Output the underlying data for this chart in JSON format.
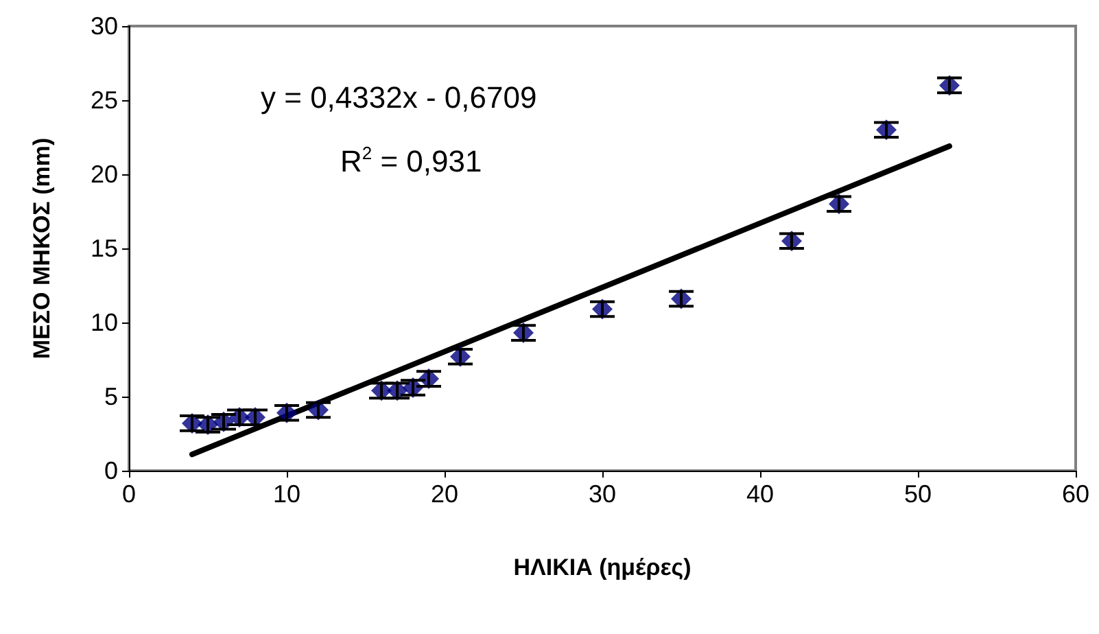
{
  "chart_data": {
    "type": "scatter",
    "xlabel": "ΗΛΙΚΙΑ (ημέρες)",
    "ylabel": "ΜΕΣΟ ΜΗΚΟΣ (mm)",
    "xlim": [
      0,
      60
    ],
    "xticks": [
      0,
      10,
      20,
      30,
      40,
      50,
      60
    ],
    "ylim": [
      0,
      30
    ],
    "yticks": [
      0,
      5,
      10,
      15,
      20,
      25,
      30
    ],
    "grid": false,
    "marker": "diamond",
    "annotations": [
      "y = 0,4332x - 0,6709",
      "R$^{2}$ = 0,931"
    ],
    "series": [
      {
        "color": "#000080",
        "x": [
          4,
          5,
          6,
          7,
          8,
          10,
          12,
          16,
          17,
          18,
          19,
          21,
          25,
          30,
          35,
          42,
          45,
          48,
          52
        ],
        "values": [
          3.2,
          3.1,
          3.3,
          3.6,
          3.6,
          3.9,
          4.1,
          5.4,
          5.4,
          5.6,
          6.2,
          7.7,
          9.3,
          10.9,
          11.6,
          15.5,
          18.0,
          23.0,
          26.0
        ],
        "errors": [
          0.5,
          0.5,
          0.5,
          0.5,
          0.5,
          0.5,
          0.5,
          0.5,
          0.5,
          0.5,
          0.5,
          0.5,
          0.5,
          0.5,
          0.5,
          0.5,
          0.5,
          0.5,
          0.5
        ]
      },
      {
        "type": "line",
        "color": "#000000",
        "line_style": "solid",
        "marker": "none",
        "x": [
          4,
          52
        ],
        "values": [
          1.1,
          21.9
        ]
      }
    ]
  }
}
